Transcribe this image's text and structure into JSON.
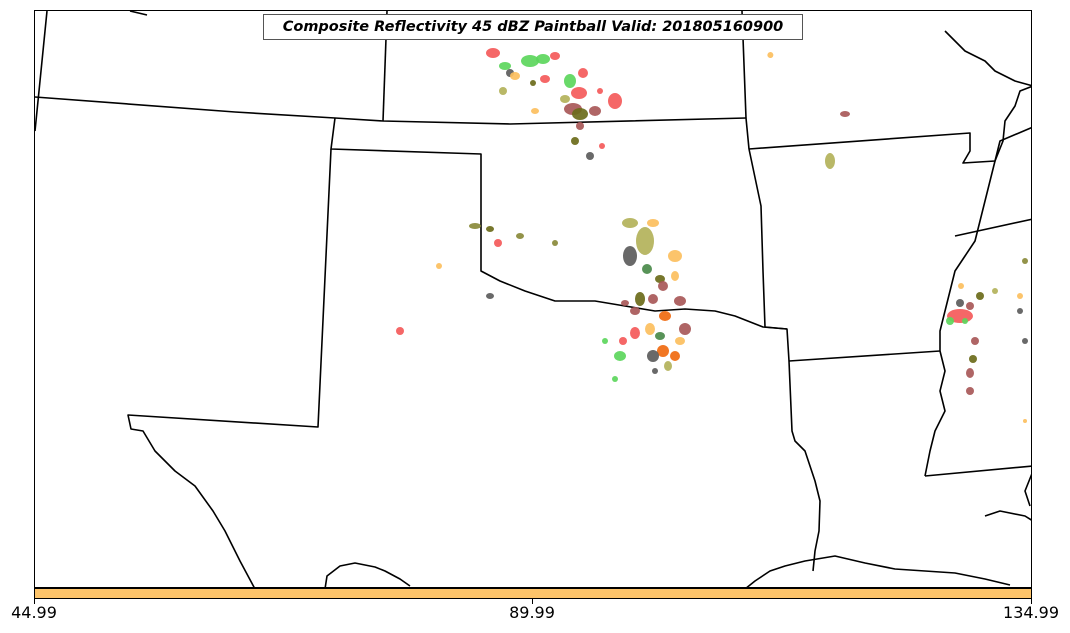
{
  "title": "Composite Reflectivity 45 dBZ Paintball Valid: 201805160900",
  "colors": {
    "boundary": "#000000",
    "colorbar_fill": "#fdc46a",
    "ensemble_members": [
      "#5cd65c",
      "#f45a5a",
      "#fcbf5e",
      "#b3b25a",
      "#6b6b1a",
      "#5c5c5c",
      "#a85858",
      "#8a8a3a",
      "#f06a10",
      "#4a8a4a"
    ]
  },
  "colorbar": {
    "ticks": [
      "44.99",
      "89.99",
      "134.99"
    ]
  }
}
